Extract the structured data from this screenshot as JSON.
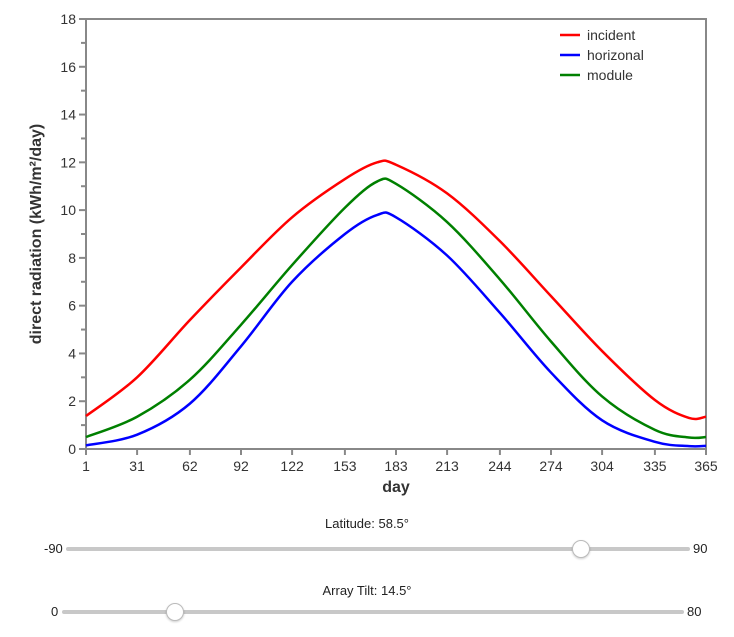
{
  "chart_data": {
    "type": "line",
    "title": "",
    "xlabel": "day",
    "ylabel": "direct radiation (kWh/m²/day)",
    "xlim": [
      1,
      365
    ],
    "ylim": [
      0,
      18
    ],
    "x_ticks": [
      1,
      31,
      62,
      92,
      122,
      153,
      183,
      213,
      244,
      274,
      304,
      335,
      365
    ],
    "y_ticks": [
      0,
      2,
      4,
      6,
      8,
      10,
      12,
      14,
      16,
      18
    ],
    "y_minor_step": 1,
    "grid": false,
    "legend_position": "top-right",
    "x": [
      1,
      31,
      62,
      92,
      122,
      153,
      172,
      183,
      213,
      244,
      274,
      304,
      335,
      355,
      365
    ],
    "series": [
      {
        "name": "incident",
        "color": "#ff0000",
        "values": [
          1.38,
          3.0,
          5.4,
          7.6,
          9.7,
          11.3,
          12.0,
          11.9,
          10.7,
          8.7,
          6.4,
          4.1,
          2.05,
          1.3,
          1.35
        ]
      },
      {
        "name": "horizonal",
        "color": "#0000ff",
        "values": [
          0.15,
          0.6,
          1.9,
          4.3,
          7.0,
          9.0,
          9.8,
          9.7,
          8.1,
          5.7,
          3.2,
          1.2,
          0.3,
          0.12,
          0.13
        ]
      },
      {
        "name": "module",
        "color": "#008000",
        "values": [
          0.5,
          1.35,
          2.9,
          5.2,
          7.7,
          10.1,
          11.2,
          11.1,
          9.5,
          7.1,
          4.5,
          2.2,
          0.8,
          0.48,
          0.5
        ]
      }
    ]
  },
  "sliders": {
    "latitude": {
      "label": "Latitude: 58.5°",
      "min": -90,
      "max": 90,
      "value": 58.5,
      "min_label": "-90",
      "max_label": "90"
    },
    "tilt": {
      "label": "Array Tilt: 14.5°",
      "min": 0,
      "max": 80,
      "value": 14.5,
      "min_label": "0",
      "max_label": "80"
    }
  }
}
